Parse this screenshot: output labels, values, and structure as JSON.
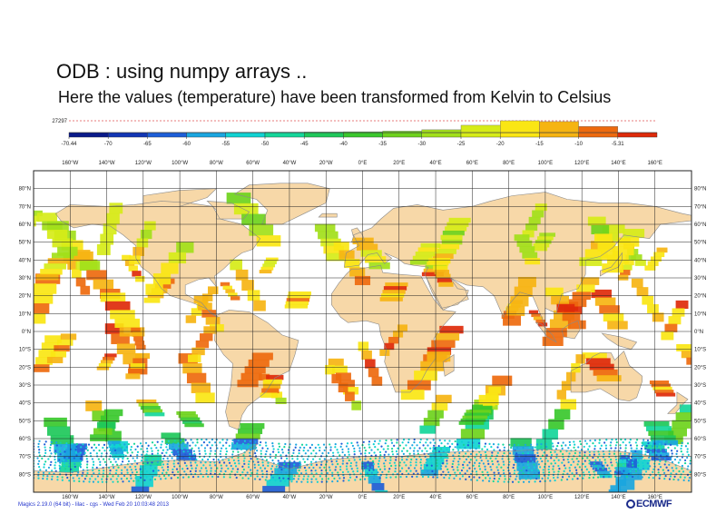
{
  "title": "ODB : using numpy arrays ..",
  "subtitle": "Here the values (temperature) have been transformed from Kelvin to Celsius",
  "histogram": {
    "max_count_label": "27297",
    "bins": [
      {
        "from": -70.44,
        "to": -70,
        "rel": 0.0,
        "color": "#0a1a8a"
      },
      {
        "from": -70,
        "to": -65,
        "rel": 0.0,
        "color": "#1236b4"
      },
      {
        "from": -65,
        "to": -60,
        "rel": 0.01,
        "color": "#1d5ed8"
      },
      {
        "from": -60,
        "to": -55,
        "rel": 0.02,
        "color": "#1aa6e0"
      },
      {
        "from": -55,
        "to": -50,
        "rel": 0.03,
        "color": "#10d2d2"
      },
      {
        "from": -50,
        "to": -45,
        "rel": 0.04,
        "color": "#14d69a"
      },
      {
        "from": -45,
        "to": -40,
        "rel": 0.05,
        "color": "#1ec85a"
      },
      {
        "from": -40,
        "to": -35,
        "rel": 0.07,
        "color": "#3ac82c"
      },
      {
        "from": -35,
        "to": -30,
        "rel": 0.12,
        "color": "#6ed21c"
      },
      {
        "from": -30,
        "to": -25,
        "rel": 0.24,
        "color": "#a2e01a"
      },
      {
        "from": -25,
        "to": -20,
        "rel": 0.62,
        "color": "#d6ec18"
      },
      {
        "from": -20,
        "to": -15,
        "rel": 1.0,
        "color": "#fae614"
      },
      {
        "from": -15,
        "to": -10,
        "rel": 0.93,
        "color": "#f6b412"
      },
      {
        "from": -10,
        "to": -5.31,
        "rel": 0.52,
        "color": "#ee6a0e"
      },
      {
        "from": -5.31,
        "to": -5.31,
        "rel": 0.0,
        "color": "#de2a0a"
      }
    ],
    "tick_labels": [
      "-70.44",
      "-70",
      "-65",
      "-60",
      "-55",
      "-50",
      "-45",
      "-40",
      "-35",
      "-30",
      "-25",
      "-20",
      "-15",
      "-10",
      "-5.31"
    ]
  },
  "map": {
    "lon_labels": [
      "160°W",
      "140°W",
      "120°W",
      "100°W",
      "80°W",
      "60°W",
      "40°W",
      "20°W",
      "0°E",
      "20°E",
      "40°E",
      "60°E",
      "80°E",
      "100°E",
      "120°E",
      "140°E",
      "160°E"
    ],
    "lat_labels": [
      "80°N",
      "70°N",
      "60°N",
      "50°N",
      "40°N",
      "30°N",
      "20°N",
      "10°N",
      "0°N",
      "10°S",
      "20°S",
      "30°S",
      "40°S",
      "50°S",
      "60°S",
      "70°S",
      "80°S"
    ],
    "lat_values": [
      80,
      70,
      60,
      50,
      40,
      30,
      20,
      10,
      0,
      -10,
      -20,
      -30,
      -40,
      -50,
      -60,
      -70,
      -80
    ],
    "lon_values": [
      -160,
      -140,
      -120,
      -100,
      -80,
      -60,
      -40,
      -20,
      0,
      20,
      40,
      60,
      80,
      100,
      120,
      140,
      160
    ],
    "extent": {
      "lon": [
        -180,
        180
      ],
      "lat": [
        -90,
        90
      ]
    },
    "land_color": "#f7d8a8",
    "coast_color": "#8a8a8a",
    "grid_color": "#222222"
  },
  "footer": "Magics 2.19.0 (64 bit) - lilac - cgs - Wed Feb 20 10:03:48 2013",
  "logo": "ECMWF"
}
